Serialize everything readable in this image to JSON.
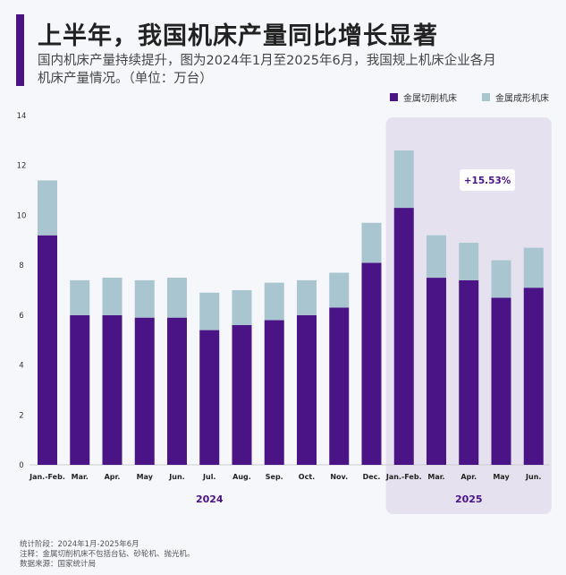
{
  "title": "上半年，我国机床产量同比增长显著",
  "subtitle": "国内机床产量持续提升，图为2024年1月至2025年6月，我国规上机床企业各月机床产量情况。（单位：万台）",
  "colors": {
    "accent": "#4a1486",
    "cutting": "#4a1486",
    "forming": "#a9c5cf",
    "highlight_bg": "#e6e1ef",
    "background": "#f5f7fb"
  },
  "chart_data": {
    "type": "bar",
    "stacked": true,
    "categories": [
      "Jan.-Feb.",
      "Mar.",
      "Apr.",
      "May",
      "Jun.",
      "Jul.",
      "Aug.",
      "Sep.",
      "Oct.",
      "Nov.",
      "Dec.",
      "Jan.-Feb.",
      "Mar.",
      "Apr.",
      "May",
      "Jun."
    ],
    "year_groups": [
      {
        "label": "2024",
        "from": 0,
        "to": 10
      },
      {
        "label": "2025",
        "from": 11,
        "to": 15
      }
    ],
    "series": [
      {
        "name": "金属切削机床",
        "values": [
          9.2,
          6.0,
          6.0,
          5.9,
          5.9,
          5.4,
          5.6,
          5.8,
          6.0,
          6.3,
          8.1,
          10.3,
          7.5,
          7.4,
          6.7,
          7.1
        ]
      },
      {
        "name": "金属成形机床",
        "values": [
          2.2,
          1.4,
          1.5,
          1.5,
          1.6,
          1.5,
          1.4,
          1.5,
          1.4,
          1.4,
          1.6,
          2.3,
          1.7,
          1.5,
          1.5,
          1.6
        ]
      }
    ],
    "ylim": [
      0,
      14
    ],
    "yticks": [
      0,
      2,
      4,
      6,
      8,
      10,
      12,
      14
    ],
    "annotation": "+15.53%",
    "highlight_range": [
      11,
      15
    ],
    "legend_position": "top-right"
  },
  "footnotes": [
    "统计阶段：2024年1月-2025年6月",
    "注释：金属切削机床不包括台钻、砂轮机、抛光机。",
    "数据来源：国家统计局"
  ]
}
